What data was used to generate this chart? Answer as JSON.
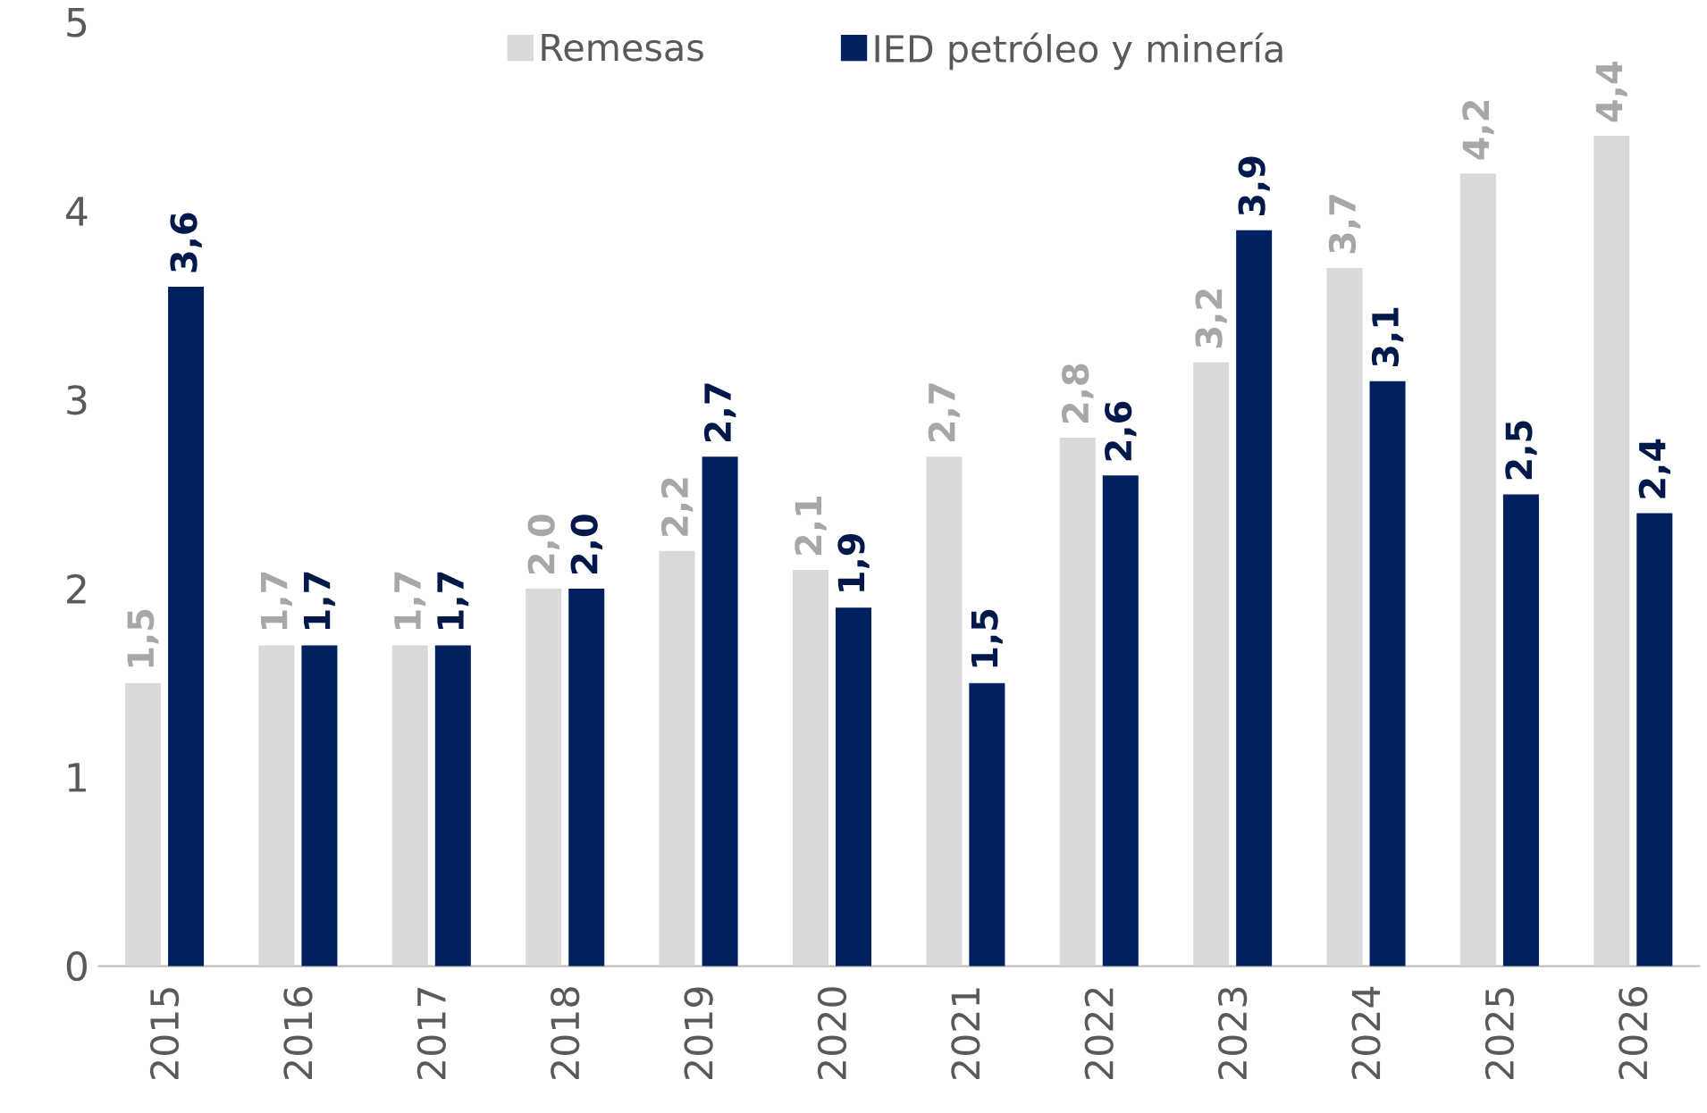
{
  "chart_data": {
    "type": "bar",
    "categories": [
      "2015",
      "2016",
      "2017",
      "2018",
      "2019",
      "2020",
      "2021",
      "2022",
      "2023",
      "2024",
      "2025",
      "2026"
    ],
    "series": [
      {
        "name": "Remesas",
        "color": "#d9d9d9",
        "values": [
          1.5,
          1.7,
          1.7,
          2.0,
          2.2,
          2.1,
          2.7,
          2.8,
          3.2,
          3.7,
          4.2,
          4.4
        ],
        "value_labels": [
          "1,5",
          "1,7",
          "1,7",
          "2,0",
          "2,2",
          "2,1",
          "2,7",
          "2,8",
          "3,2",
          "3,7",
          "4,2",
          "4,4"
        ]
      },
      {
        "name": "IED petróleo y minería",
        "color": "#002060",
        "values": [
          3.6,
          1.7,
          1.7,
          2.0,
          2.7,
          1.9,
          1.5,
          2.6,
          3.9,
          3.1,
          2.5,
          2.4
        ],
        "value_labels": [
          "3,6",
          "1,7",
          "1,7",
          "2,0",
          "2,7",
          "1,9",
          "1,5",
          "2,6",
          "3,9",
          "3,1",
          "2,5",
          "2,4"
        ]
      }
    ],
    "ylim": [
      0,
      5
    ],
    "yticks": [
      0,
      1,
      2,
      3,
      4,
      5
    ],
    "legend": "top"
  }
}
